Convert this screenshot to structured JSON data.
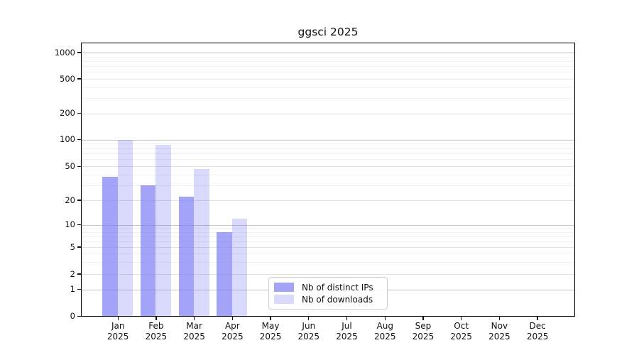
{
  "chart_data": {
    "type": "bar",
    "title": "ggsci 2025",
    "x": [
      "Jan 2025",
      "Feb 2025",
      "Mar 2025",
      "Apr 2025",
      "May 2025",
      "Jun 2025",
      "Jul 2025",
      "Aug 2025",
      "Sep 2025",
      "Oct 2025",
      "Nov 2025",
      "Dec 2025"
    ],
    "series": [
      {
        "name": "Nb of distinct IPs",
        "color": "#7878f3",
        "opacity": 0.68,
        "values": [
          38,
          30,
          22,
          8,
          null,
          null,
          null,
          null,
          null,
          null,
          null,
          null
        ]
      },
      {
        "name": "Nb of downloads",
        "color": "#7878f3",
        "opacity": 0.28,
        "values": [
          100,
          88,
          47,
          12,
          null,
          null,
          null,
          null,
          null,
          null,
          null,
          null
        ]
      }
    ],
    "y_axis": {
      "scale": "log",
      "tick_labels": [
        "1000",
        "500",
        "200",
        "100",
        "50",
        "20",
        "10",
        "5",
        "2",
        "1",
        "0"
      ],
      "tick_values": [
        1000,
        500,
        200,
        100,
        50,
        20,
        10,
        5,
        2,
        1,
        0
      ]
    },
    "grid": "on",
    "legend_position": "lower-center",
    "colors": {
      "bar_dark_rendered": "#a3a3f7",
      "bar_light_rendered": "#d8d9fa",
      "axis": "#000000",
      "grid_major": "#c2c2c2",
      "grid_minor": "#f0f0f0"
    }
  }
}
